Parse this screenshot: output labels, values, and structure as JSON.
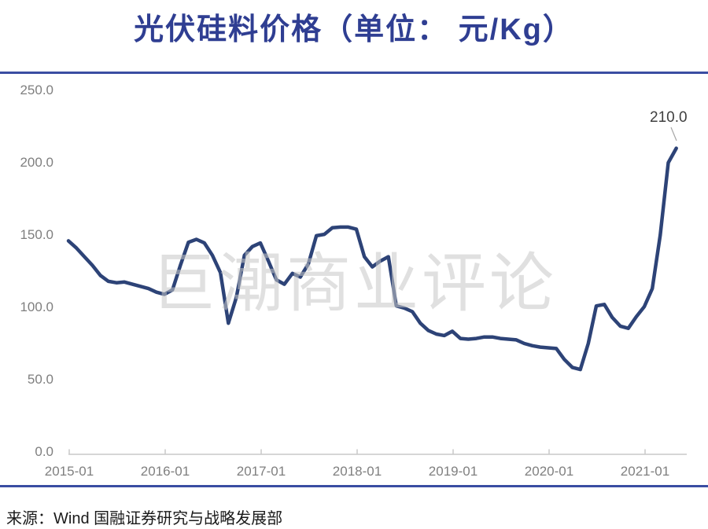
{
  "title": "光伏硅料价格（单位： 元/Kg）",
  "source": "来源：Wind  国融证券研究与战略发展部",
  "watermark": "巨潮商业评论",
  "annotation": {
    "label": "210.0"
  },
  "y_axis": {
    "ticks": [
      "250.0",
      "200.0",
      "150.0",
      "100.0",
      "50.0",
      "0.0"
    ]
  },
  "x_axis": {
    "ticks": [
      "2015-01",
      "2016-01",
      "2017-01",
      "2018-01",
      "2019-01",
      "2020-01",
      "2021-01"
    ]
  },
  "theme": {
    "title_color": "#2F3E92",
    "border_color": "#3A4DA2",
    "line_color": "#2D4377",
    "label_color": "#7F7F7F",
    "axis_color": "#C9C9C9",
    "watermark_color": "#C8C8C8",
    "annotation_color": "#3F3F3F",
    "source_color": "#1A1A1A"
  },
  "chart_data": {
    "type": "line",
    "title": "光伏硅料价格（单位： 元/Kg）",
    "series_name": "光伏硅料价格",
    "unit": "元/Kg",
    "grid": false,
    "legend": false,
    "ylim": [
      0,
      250
    ],
    "y_ticks": [
      0,
      50,
      100,
      150,
      200,
      250
    ],
    "x_tick_labels": [
      "2015-01",
      "2016-01",
      "2017-01",
      "2018-01",
      "2019-01",
      "2020-01",
      "2021-01"
    ],
    "annotation": {
      "x": "2021-05",
      "y": 210.0,
      "text": "210.0"
    },
    "x": [
      "2015-01",
      "2015-02",
      "2015-03",
      "2015-04",
      "2015-05",
      "2015-06",
      "2015-07",
      "2015-08",
      "2015-09",
      "2015-10",
      "2015-11",
      "2015-12",
      "2016-01",
      "2016-02",
      "2016-03",
      "2016-04",
      "2016-05",
      "2016-06",
      "2016-07",
      "2016-08",
      "2016-09",
      "2016-10",
      "2016-11",
      "2016-12",
      "2017-01",
      "2017-02",
      "2017-03",
      "2017-04",
      "2017-05",
      "2017-06",
      "2017-07",
      "2017-08",
      "2017-09",
      "2017-10",
      "2017-11",
      "2017-12",
      "2018-01",
      "2018-02",
      "2018-03",
      "2018-04",
      "2018-05",
      "2018-06",
      "2018-07",
      "2018-08",
      "2018-09",
      "2018-10",
      "2018-11",
      "2018-12",
      "2019-01",
      "2019-02",
      "2019-03",
      "2019-04",
      "2019-05",
      "2019-06",
      "2019-07",
      "2019-08",
      "2019-09",
      "2019-10",
      "2019-11",
      "2019-12",
      "2020-01",
      "2020-02",
      "2020-03",
      "2020-04",
      "2020-05",
      "2020-06",
      "2020-07",
      "2020-08",
      "2020-09",
      "2020-10",
      "2020-11",
      "2020-12",
      "2021-01",
      "2021-02",
      "2021-03",
      "2021-04",
      "2021-05"
    ],
    "values": [
      146,
      141,
      135,
      129,
      122,
      118,
      117,
      117.5,
      116,
      114.5,
      113,
      110.5,
      109,
      112,
      129,
      145,
      147,
      144.5,
      136,
      124,
      89,
      107,
      136,
      142,
      144.5,
      132,
      119,
      116,
      123.5,
      121,
      130,
      149.5,
      150.5,
      155,
      155.5,
      155.5,
      154,
      135,
      128,
      132,
      135,
      101,
      99.5,
      97,
      89,
      84,
      81.5,
      80.5,
      83.5,
      78.5,
      78,
      78.5,
      79.5,
      79.5,
      78.5,
      78,
      77.5,
      75,
      73.5,
      72.5,
      72,
      71.5,
      64,
      58.5,
      57,
      75,
      101,
      102,
      93,
      87,
      85.5,
      93.5,
      100.5,
      113,
      150,
      200,
      210
    ]
  }
}
